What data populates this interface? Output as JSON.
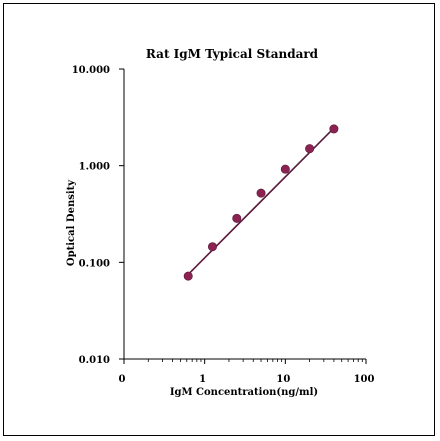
{
  "chart_data": {
    "type": "scatter",
    "title": "Rat IgM Typical Standard",
    "xlabel": "IgM  Concentration(ng/ml)",
    "ylabel": "Optical  Density",
    "xscale": "log",
    "yscale": "log",
    "xlim": [
      0.1,
      100
    ],
    "ylim": [
      0.01,
      10
    ],
    "x_ticks": [
      "0",
      "1",
      "10",
      "100"
    ],
    "y_ticks": [
      "10.000",
      "1.000",
      "0.100",
      "0.010"
    ],
    "grid": false,
    "legend": "none",
    "series": [
      {
        "marker_color": "#8b2252",
        "line_color": "#5a1a3a",
        "x": [
          0.625,
          1.25,
          2.5,
          5,
          10,
          20,
          40
        ],
        "y": [
          0.072,
          0.145,
          0.285,
          0.52,
          0.92,
          1.5,
          2.4
        ]
      }
    ],
    "fit": {
      "type": "line",
      "x": [
        0.625,
        40
      ],
      "y": [
        0.075,
        2.45
      ]
    }
  }
}
